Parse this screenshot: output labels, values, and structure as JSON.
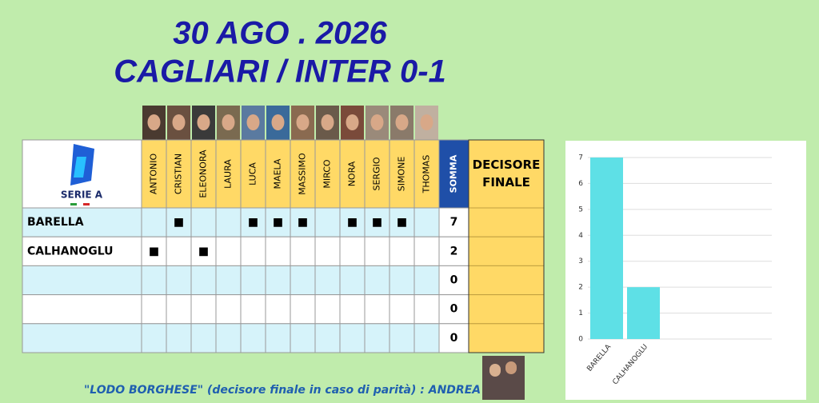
{
  "header": {
    "title_lines": [
      "30 AGO .  2026",
      "CAGLIARI / INTER 0-1"
    ]
  },
  "logo": {
    "text": "SERIE A"
  },
  "table": {
    "columns": [
      "ANTONIO",
      "CRISTIAN",
      "ELEONORA",
      "LAURA",
      "LUCA",
      "MAELA",
      "MASSIMO",
      "MIRCO",
      "NORA",
      "SERGIO",
      "SIMONE",
      "THOMAS"
    ],
    "sum_header": "SOMMA",
    "decider_header": "DECISORE FINALE",
    "rows": [
      {
        "label": "BARELLA",
        "marks": [
          null,
          "■",
          null,
          null,
          "■",
          "■",
          "■",
          null,
          "■",
          "■",
          "■",
          null
        ],
        "sum": 7
      },
      {
        "label": "CALHANOGLU",
        "marks": [
          "■",
          null,
          "■",
          null,
          null,
          null,
          null,
          null,
          null,
          null,
          null,
          null
        ],
        "sum": 2
      },
      {
        "label": null,
        "marks": [
          null,
          null,
          null,
          null,
          null,
          null,
          null,
          null,
          null,
          null,
          null,
          null
        ],
        "sum": 0
      },
      {
        "label": null,
        "marks": [
          null,
          null,
          null,
          null,
          null,
          null,
          null,
          null,
          null,
          null,
          null,
          null
        ],
        "sum": 0
      },
      {
        "label": null,
        "marks": [
          null,
          null,
          null,
          null,
          null,
          null,
          null,
          null,
          null,
          null,
          null,
          null
        ],
        "sum": 0
      }
    ]
  },
  "footer": {
    "text": "\"LODO BORGHESE\" (decisore finale in caso di parità) :  ANDREA"
  },
  "chart_data": {
    "type": "bar",
    "categories": [
      "BARELLA",
      "CALHANOGLU"
    ],
    "values": [
      7,
      2
    ],
    "color": "#5ee0e6",
    "ylim": [
      0,
      7
    ],
    "yticks": [
      0,
      1,
      2,
      3,
      4,
      5,
      6,
      7
    ],
    "grid": true
  }
}
